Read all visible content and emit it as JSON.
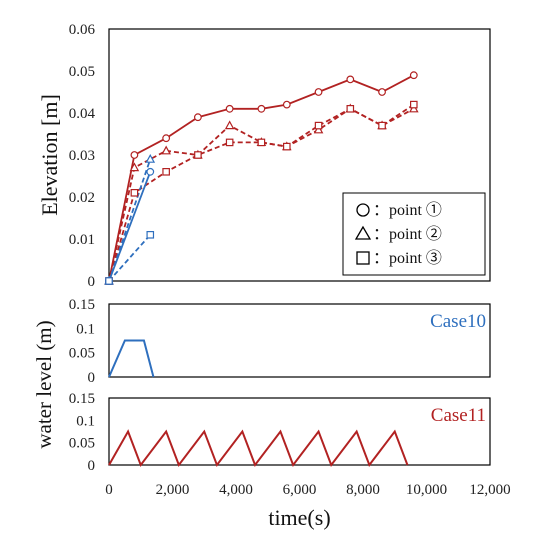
{
  "colors": {
    "red": "#b22222",
    "blue": "#2e6fbe",
    "frame": "#000000"
  },
  "chart_data": [
    {
      "type": "line",
      "ylabel": "Elevation [m]",
      "ylim": [
        0,
        0.06
      ],
      "yticks": [
        0,
        0.01,
        0.02,
        0.03,
        0.04,
        0.05,
        0.06
      ],
      "ytick_labels": [
        "0",
        "0.01",
        "0.02",
        "0.03",
        "0.04",
        "0.05",
        "0.06"
      ],
      "xlim": [
        0,
        12000
      ],
      "legend_position": "bottom-right",
      "legend": [
        {
          "symbol": "circle",
          "text": "：point ①"
        },
        {
          "symbol": "triangle",
          "text": "：point ②"
        },
        {
          "symbol": "square",
          "text": "：point ③"
        }
      ],
      "series": [
        {
          "case": "Case11",
          "marker": "circle",
          "style": "solid",
          "color": "#b22222",
          "x": [
            0,
            800,
            1800,
            2800,
            3800,
            4800,
            5600,
            6600,
            7600,
            8600,
            9600
          ],
          "y": [
            0,
            0.03,
            0.034,
            0.039,
            0.041,
            0.041,
            0.042,
            0.045,
            0.048,
            0.045,
            0.049
          ]
        },
        {
          "case": "Case11",
          "marker": "triangle",
          "style": "dashed",
          "color": "#b22222",
          "x": [
            0,
            800,
            1800,
            2800,
            3800,
            4800,
            5600,
            6600,
            7600,
            8600,
            9600
          ],
          "y": [
            0,
            0.027,
            0.031,
            0.03,
            0.037,
            0.033,
            0.032,
            0.036,
            0.041,
            0.037,
            0.041
          ]
        },
        {
          "case": "Case11",
          "marker": "square",
          "style": "dashed",
          "color": "#b22222",
          "x": [
            0,
            800,
            1800,
            2800,
            3800,
            4800,
            5600,
            6600,
            7600,
            8600,
            9600
          ],
          "y": [
            0,
            0.021,
            0.026,
            0.03,
            0.033,
            0.033,
            0.032,
            0.037,
            0.041,
            0.037,
            0.042
          ]
        },
        {
          "case": "Case10",
          "marker": "circle",
          "style": "solid",
          "color": "#2e6fbe",
          "x": [
            0,
            1300
          ],
          "y": [
            0,
            0.026
          ]
        },
        {
          "case": "Case10",
          "marker": "triangle",
          "style": "dashed",
          "color": "#2e6fbe",
          "x": [
            0,
            1300
          ],
          "y": [
            0,
            0.029
          ]
        },
        {
          "case": "Case10",
          "marker": "square",
          "style": "dashed",
          "color": "#2e6fbe",
          "x": [
            0,
            1300
          ],
          "y": [
            0,
            0.011
          ]
        }
      ]
    },
    {
      "type": "line",
      "label": "Case10",
      "color": "#2e6fbe",
      "ylim": [
        0,
        0.15
      ],
      "yticks": [
        0,
        0.05,
        0.1,
        0.15
      ],
      "ytick_labels": [
        "0",
        "0.05",
        "0.1",
        "0.15"
      ],
      "xlim": [
        0,
        12000
      ],
      "x": [
        0,
        500,
        1100,
        1400
      ],
      "y": [
        0,
        0.075,
        0.075,
        0
      ]
    },
    {
      "type": "line",
      "label": "Case11",
      "color": "#b22222",
      "ylim": [
        0,
        0.15
      ],
      "yticks": [
        0,
        0.05,
        0.1,
        0.15
      ],
      "ytick_labels": [
        "0",
        "0.05",
        "0.1",
        "0.15"
      ],
      "xlim": [
        0,
        12000
      ],
      "xticks": [
        0,
        2000,
        4000,
        6000,
        8000,
        10000,
        12000
      ],
      "xtick_labels": [
        "0",
        "2,000",
        "4,000",
        "6,000",
        "8,000",
        "10,000",
        "12,000"
      ],
      "xlabel": "time(s)",
      "x": [
        0,
        600,
        1000,
        1800,
        2200,
        3000,
        3400,
        4200,
        4600,
        5400,
        5800,
        6600,
        7000,
        7800,
        8200,
        9000,
        9400
      ],
      "y": [
        0,
        0.075,
        0,
        0.075,
        0,
        0.075,
        0,
        0.075,
        0,
        0.075,
        0,
        0.075,
        0,
        0.075,
        0,
        0.075,
        0
      ]
    }
  ],
  "shared_ylabel": "water level (m)"
}
